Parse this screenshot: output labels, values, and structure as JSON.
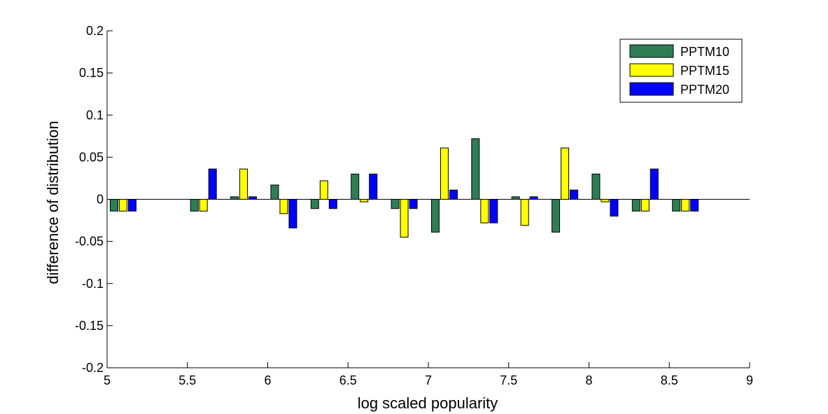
{
  "chart_data": {
    "type": "bar",
    "xlabel": "log scaled popularity",
    "ylabel": "difference of distribution",
    "xlim": [
      5,
      9
    ],
    "ylim": [
      -0.2,
      0.2
    ],
    "x_ticks": [
      "5",
      "5.5",
      "6",
      "6.5",
      "7",
      "7.5",
      "8",
      "8.5",
      "9"
    ],
    "y_ticks": [
      "-0.2",
      "-0.15",
      "-0.1",
      "-0.05",
      "0",
      "0.05",
      "0.1",
      "0.15",
      "0.2"
    ],
    "x": [
      5.1,
      5.6,
      5.85,
      6.1,
      6.35,
      6.6,
      6.85,
      7.1,
      7.35,
      7.6,
      7.85,
      8.1,
      8.35,
      8.6
    ],
    "legend_position": "top-right",
    "series": [
      {
        "name": "PPTM10",
        "color": "#2e7d55",
        "values": [
          -0.014,
          -0.014,
          0.003,
          0.017,
          -0.011,
          0.03,
          -0.011,
          -0.039,
          0.072,
          0.003,
          -0.039,
          0.03,
          -0.014,
          -0.014
        ]
      },
      {
        "name": "PPTM15",
        "color": "#ffff00",
        "values": [
          -0.014,
          -0.014,
          0.036,
          -0.017,
          0.022,
          -0.003,
          -0.045,
          0.061,
          -0.028,
          -0.031,
          0.061,
          -0.003,
          -0.014,
          -0.014
        ]
      },
      {
        "name": "PPTM20",
        "color": "#0000ff",
        "values": [
          -0.014,
          0.036,
          0.003,
          -0.034,
          -0.011,
          0.03,
          -0.011,
          0.011,
          -0.028,
          0.003,
          0.011,
          -0.02,
          0.036,
          -0.014
        ]
      }
    ]
  }
}
